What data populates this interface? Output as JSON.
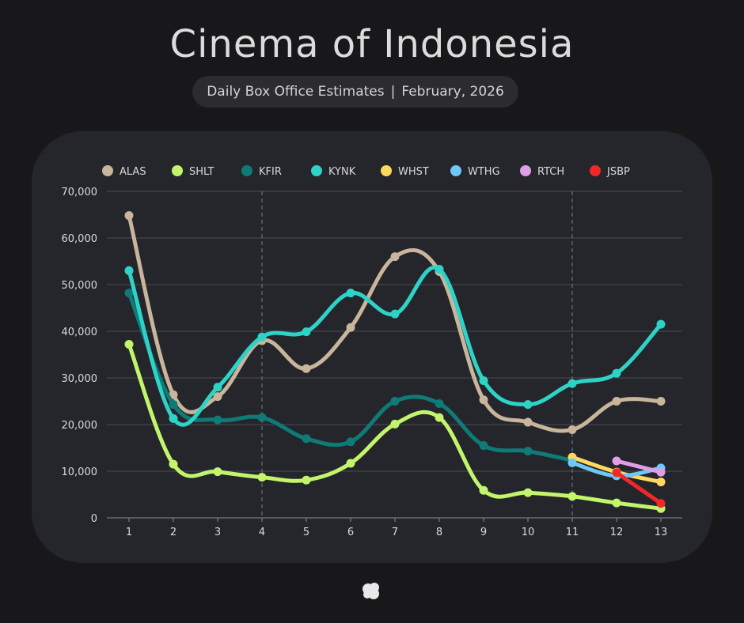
{
  "header": {
    "title": "Cinema of Indonesia",
    "subtitle_left": "Daily Box Office Estimates",
    "subtitle_sep": "|",
    "subtitle_right": "February, 2026"
  },
  "colors": {
    "background": "#18181b",
    "card": "#25262b",
    "grid": "#4a4b52",
    "text": "#d9d9d9"
  },
  "chart_data": {
    "type": "line",
    "x": [
      1,
      2,
      3,
      4,
      5,
      6,
      7,
      8,
      9,
      10,
      11,
      12,
      13
    ],
    "ylim": [
      0,
      70000
    ],
    "yticks": [
      0,
      10000,
      20000,
      30000,
      40000,
      50000,
      60000,
      70000
    ],
    "ytick_labels": [
      "0",
      "10,000",
      "20,000",
      "30,000",
      "40,000",
      "50,000",
      "60,000",
      "70,000"
    ],
    "xtick_labels": [
      "1",
      "2",
      "3",
      "4",
      "5",
      "6",
      "7",
      "8",
      "9",
      "10",
      "11",
      "12",
      "13"
    ],
    "grid": "horizontal",
    "reference_lines_x": [
      4,
      11
    ],
    "legend": "top",
    "series": [
      {
        "name": "ALAS",
        "color": "#c8b59b",
        "x": [
          1,
          2,
          3,
          4,
          5,
          6,
          7,
          8,
          9,
          10,
          11,
          12,
          13
        ],
        "values": [
          64800,
          26400,
          26000,
          38000,
          32000,
          40800,
          56000,
          52800,
          25300,
          20500,
          18900,
          25000,
          25000
        ]
      },
      {
        "name": "SHLT",
        "color": "#c2f56b",
        "x": [
          1,
          2,
          3,
          4,
          5,
          6,
          7,
          8,
          9,
          10,
          11,
          12,
          13
        ],
        "values": [
          37200,
          11500,
          9900,
          8700,
          8100,
          11700,
          20100,
          21500,
          5900,
          5400,
          4600,
          3200,
          2000
        ]
      },
      {
        "name": "KFIR",
        "color": "#0f7b78",
        "x": [
          1,
          2,
          3,
          4,
          5,
          6,
          7,
          8,
          9,
          10,
          11,
          12,
          13
        ],
        "values": [
          48200,
          24300,
          21000,
          21500,
          17000,
          16300,
          25000,
          24500,
          15500,
          14300,
          12300,
          null,
          null
        ]
      },
      {
        "name": "KYNK",
        "color": "#2ed3c8",
        "x": [
          1,
          2,
          3,
          4,
          5,
          6,
          7,
          8,
          9,
          10,
          11,
          12,
          13
        ],
        "values": [
          53000,
          21300,
          28000,
          38800,
          39900,
          48200,
          43700,
          53300,
          29400,
          24300,
          28800,
          31000,
          41500
        ]
      },
      {
        "name": "WHST",
        "color": "#ffd85e",
        "x": [
          11,
          12,
          13
        ],
        "values": [
          13000,
          9800,
          7700
        ]
      },
      {
        "name": "WTHG",
        "color": "#6cc9f7",
        "x": [
          11,
          12,
          13
        ],
        "values": [
          11800,
          9000,
          10700
        ]
      },
      {
        "name": "RTCH",
        "color": "#e09de8",
        "x": [
          12,
          13
        ],
        "values": [
          12200,
          9800
        ]
      },
      {
        "name": "JSBP",
        "color": "#f0282a",
        "x": [
          12,
          13
        ],
        "values": [
          9700,
          3100
        ]
      }
    ]
  }
}
